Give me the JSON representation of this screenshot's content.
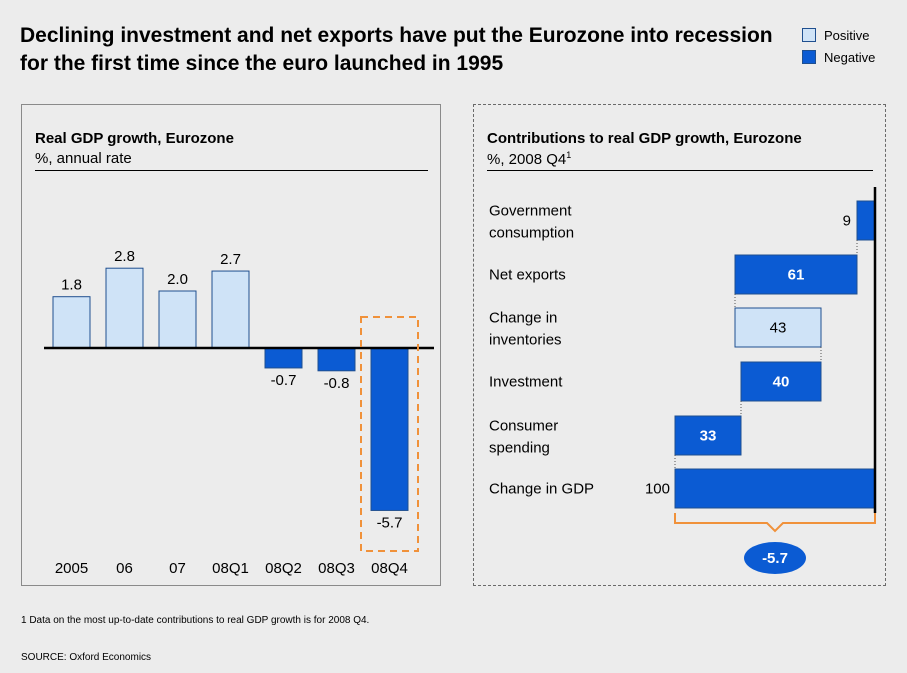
{
  "title": "Declining investment and net exports have put the Eurozone into recession for the first time since the euro launched in 1995",
  "legend": [
    {
      "label": "Positive",
      "color": "#cfe3f7"
    },
    {
      "label": "Negative",
      "color": "#0b5bd3"
    }
  ],
  "colors": {
    "positive": "#cfe3f7",
    "negative": "#0b5bd3",
    "border": "#1f4f8f",
    "highlight": "#f0913a"
  },
  "left_panel": {
    "title": "Real GDP growth, Eurozone",
    "subtitle": "%, annual rate"
  },
  "right_panel": {
    "title": "Contributions to real GDP growth, Eurozone",
    "subtitle": "%, 2008 Q4",
    "subtitle_sup": "1",
    "total_badge": "-5.7"
  },
  "chart_data": [
    {
      "type": "bar",
      "title": "Real GDP growth, Eurozone",
      "ylabel": "%, annual rate",
      "categories": [
        "2005",
        "06",
        "07",
        "08Q1",
        "08Q2",
        "08Q3",
        "08Q4"
      ],
      "values": [
        1.8,
        2.8,
        2.0,
        2.7,
        -0.7,
        -0.8,
        -5.7
      ],
      "value_labels": [
        "1.8",
        "2.8",
        "2.0",
        "2.7",
        "-0.7",
        "-0.8",
        "-5.7"
      ],
      "ylim": [
        -6,
        3.2
      ],
      "highlight": "08Q4"
    },
    {
      "type": "bar",
      "subtype": "waterfall",
      "title": "Contributions to real GDP growth, Eurozone",
      "ylabel": "%, 2008 Q4",
      "categories": [
        [
          "Government",
          "consumption"
        ],
        [
          "Net exports"
        ],
        [
          "Change in",
          "inventories"
        ],
        [
          "Investment"
        ],
        [
          "Consumer",
          "spending"
        ],
        [
          "Change in GDP"
        ]
      ],
      "values": [
        9,
        61,
        43,
        40,
        33,
        100
      ],
      "signs": [
        "negative",
        "negative",
        "positive",
        "negative",
        "negative",
        "negative"
      ],
      "total_label": "100",
      "total_change": -5.7
    }
  ],
  "footnote": "1 Data on the most up-to-date contributions to real GDP growth is for 2008 Q4.",
  "source": "SOURCE: Oxford Economics"
}
